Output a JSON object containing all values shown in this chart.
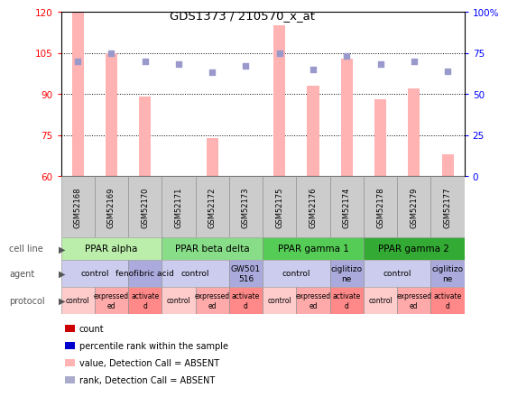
{
  "title": "GDS1373 / 210570_x_at",
  "samples": [
    "GSM52168",
    "GSM52169",
    "GSM52170",
    "GSM52171",
    "GSM52172",
    "GSM52173",
    "GSM52175",
    "GSM52176",
    "GSM52174",
    "GSM52178",
    "GSM52179",
    "GSM52177"
  ],
  "bar_values": [
    120,
    105,
    89,
    60,
    74,
    60,
    115,
    93,
    103,
    88,
    92,
    68
  ],
  "dot_values_pct": [
    70,
    75,
    70,
    68,
    63,
    67,
    75,
    65,
    73,
    68,
    70,
    64
  ],
  "ylim_left": [
    60,
    120
  ],
  "ylim_right": [
    0,
    100
  ],
  "yticks_left": [
    60,
    75,
    90,
    105,
    120
  ],
  "yticks_right": [
    0,
    25,
    50,
    75,
    100
  ],
  "bar_color": "#FFB3B3",
  "dot_color": "#9999CC",
  "cell_lines": [
    {
      "label": "PPAR alpha",
      "start": 0,
      "end": 3,
      "color": "#BBEEAA"
    },
    {
      "label": "PPAR beta delta",
      "start": 3,
      "end": 6,
      "color": "#88DD88"
    },
    {
      "label": "PPAR gamma 1",
      "start": 6,
      "end": 9,
      "color": "#55CC55"
    },
    {
      "label": "PPAR gamma 2",
      "start": 9,
      "end": 12,
      "color": "#33AA33"
    }
  ],
  "agents": [
    {
      "label": "control",
      "start": 0,
      "end": 2,
      "color": "#CCCCEE"
    },
    {
      "label": "fenofibric acid",
      "start": 2,
      "end": 3,
      "color": "#AAAADD"
    },
    {
      "label": "control",
      "start": 3,
      "end": 5,
      "color": "#CCCCEE"
    },
    {
      "label": "GW501\n516",
      "start": 5,
      "end": 6,
      "color": "#AAAADD"
    },
    {
      "label": "control",
      "start": 6,
      "end": 8,
      "color": "#CCCCEE"
    },
    {
      "label": "ciglitizo\nne",
      "start": 8,
      "end": 9,
      "color": "#AAAADD"
    },
    {
      "label": "control",
      "start": 9,
      "end": 11,
      "color": "#CCCCEE"
    },
    {
      "label": "ciglitizo\nne",
      "start": 11,
      "end": 12,
      "color": "#AAAADD"
    }
  ],
  "protocols": [
    {
      "label": "control",
      "start": 0,
      "end": 1,
      "color": "#FFCCCC"
    },
    {
      "label": "expressed\ned",
      "start": 1,
      "end": 2,
      "color": "#FFAAAA"
    },
    {
      "label": "activate\nd",
      "start": 2,
      "end": 3,
      "color": "#FF8888"
    },
    {
      "label": "control",
      "start": 3,
      "end": 4,
      "color": "#FFCCCC"
    },
    {
      "label": "expressed\ned",
      "start": 4,
      "end": 5,
      "color": "#FFAAAA"
    },
    {
      "label": "activate\nd",
      "start": 5,
      "end": 6,
      "color": "#FF8888"
    },
    {
      "label": "control",
      "start": 6,
      "end": 7,
      "color": "#FFCCCC"
    },
    {
      "label": "expressed\ned",
      "start": 7,
      "end": 8,
      "color": "#FFAAAA"
    },
    {
      "label": "activate\nd",
      "start": 8,
      "end": 9,
      "color": "#FF8888"
    },
    {
      "label": "control",
      "start": 9,
      "end": 10,
      "color": "#FFCCCC"
    },
    {
      "label": "expressed\ned",
      "start": 10,
      "end": 11,
      "color": "#FFAAAA"
    },
    {
      "label": "activate\nd",
      "start": 11,
      "end": 12,
      "color": "#FF8888"
    }
  ],
  "legend_colors": [
    "#CC0000",
    "#0000CC",
    "#FFB3B3",
    "#AAAACC"
  ],
  "legend_labels": [
    "count",
    "percentile rank within the sample",
    "value, Detection Call = ABSENT",
    "rank, Detection Call = ABSENT"
  ],
  "left_labels": [
    "cell line",
    "agent",
    "protocol"
  ],
  "sample_bg": "#CCCCCC",
  "fig_bg": "#FFFFFF"
}
